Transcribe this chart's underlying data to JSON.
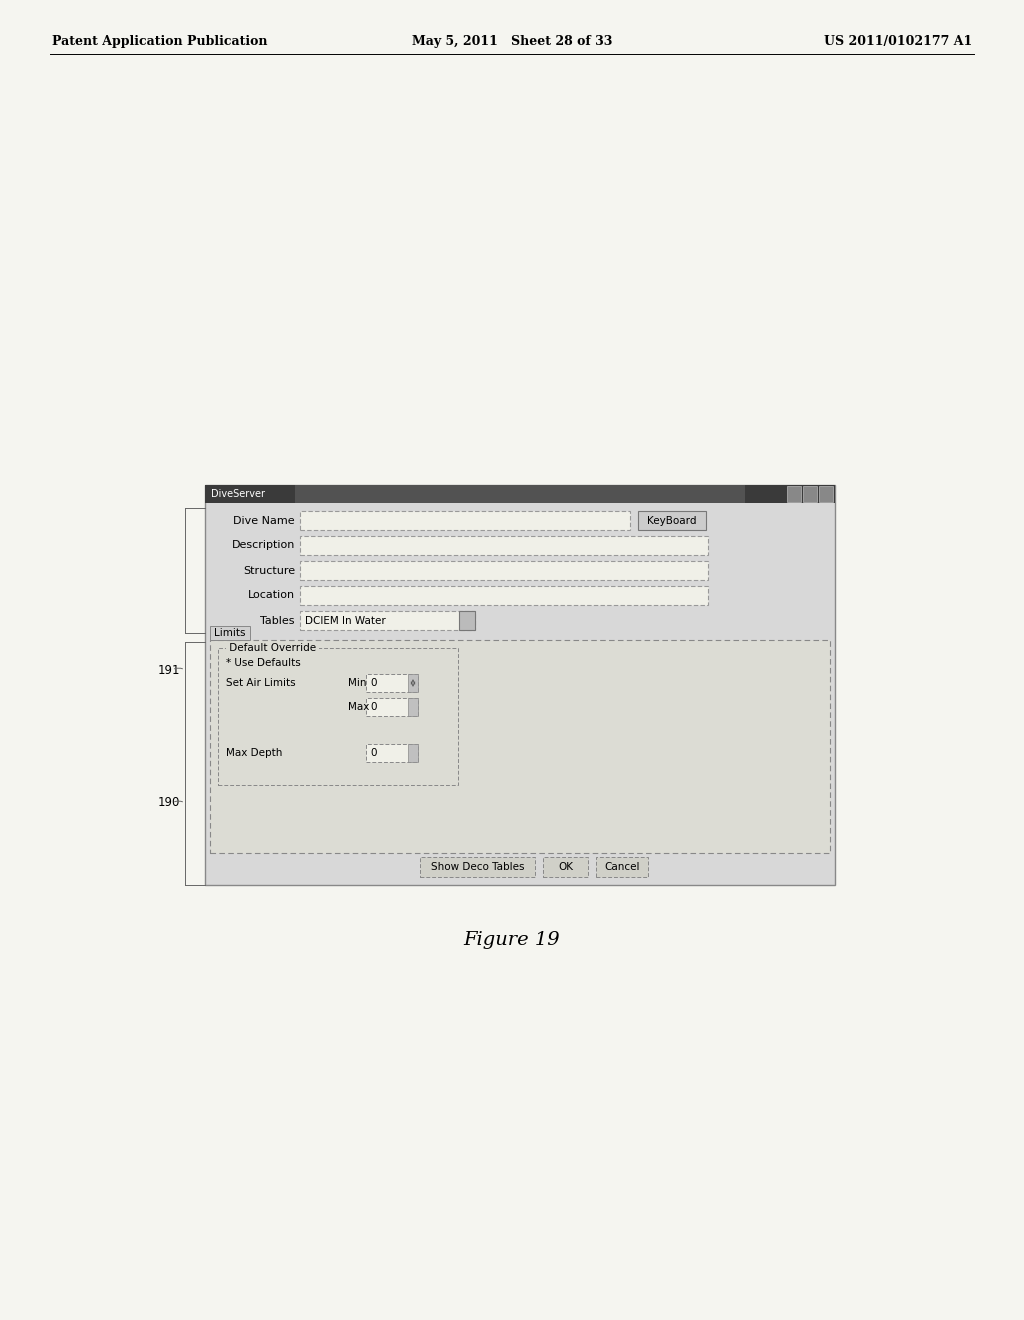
{
  "bg_color": "#f5f5f0",
  "header_left": "Patent Application Publication",
  "header_center": "May 5, 2011   Sheet 28 of 33",
  "header_right": "US 2011/0102177 A1",
  "figure_caption": "Figure 19",
  "label_191": "191",
  "label_190": "190",
  "dialog_title": "DiveServer",
  "fields": [
    "Dive Name",
    "Description",
    "Structure",
    "Location",
    "Tables"
  ],
  "tables_value": "DCIEM In Water",
  "keyboard_btn": "KeyBoard",
  "limits_tab": "Limits",
  "default_override_label": "Default Override",
  "use_defaults_label": "Use Defaults",
  "set_air_limits_label": "Set Air Limits",
  "min_label": "Min",
  "max_label": "Max",
  "max_depth_label": "Max Depth",
  "min_value": "0",
  "max_value": "0",
  "max_depth_value": "0",
  "btn_show_deco": "Show Deco Tables",
  "btn_ok": "OK",
  "btn_cancel": "Cancel"
}
